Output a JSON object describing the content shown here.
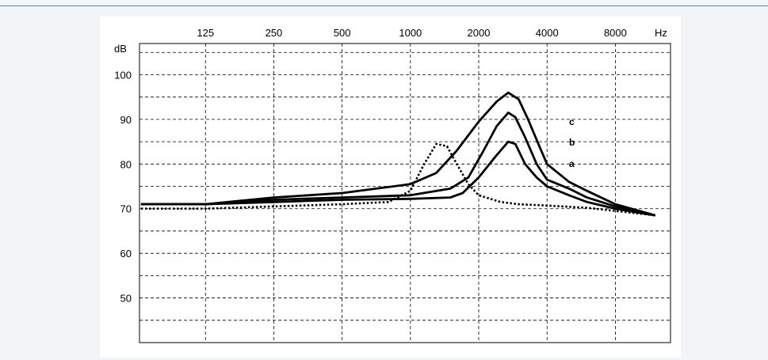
{
  "chart_data": {
    "type": "line",
    "x_unit_label": "Hz",
    "y_unit_label": "dB",
    "x_scale": "log",
    "x_ticks": [
      125,
      250,
      500,
      1000,
      2000,
      4000,
      8000
    ],
    "x_tick_labels": [
      "125",
      "250",
      "500",
      "1000",
      "2000",
      "4000",
      "8000"
    ],
    "xlim": [
      64,
      14000
    ],
    "y_ticks": [
      50,
      60,
      70,
      80,
      90,
      100
    ],
    "y_tick_labels": [
      "50",
      "60",
      "70",
      "80",
      "90",
      "100"
    ],
    "ylim": [
      40,
      107
    ],
    "grid": true,
    "grid_style": "dashed",
    "series": [
      {
        "name": "",
        "style": "dotted",
        "color": "#000000",
        "x": [
          65,
          125,
          250,
          500,
          800,
          1000,
          1150,
          1300,
          1450,
          1600,
          1800,
          2000,
          2500,
          3000,
          4000,
          6000,
          8000,
          12000
        ],
        "y": [
          70,
          70,
          70.5,
          71,
          71.5,
          74,
          80,
          84.5,
          84,
          80,
          75.5,
          73,
          71.5,
          71,
          70.7,
          70.2,
          69.5,
          68.5
        ]
      },
      {
        "name": "a",
        "style": "solid",
        "color": "#000000",
        "x": [
          65,
          125,
          250,
          500,
          1000,
          1500,
          1700,
          2000,
          2400,
          2700,
          2900,
          3200,
          3600,
          4000,
          5000,
          6000,
          8000,
          12000
        ],
        "y": [
          71,
          71,
          71.5,
          72,
          72.2,
          72.5,
          73.5,
          77,
          82,
          85,
          84.5,
          80,
          77,
          75,
          73,
          71.5,
          70,
          68.5
        ]
      },
      {
        "name": "b",
        "style": "solid",
        "color": "#000000",
        "x": [
          65,
          125,
          250,
          500,
          1000,
          1500,
          1800,
          2100,
          2400,
          2700,
          2900,
          3200,
          3600,
          4000,
          5000,
          6000,
          8000,
          12000
        ],
        "y": [
          71,
          71,
          72,
          72.5,
          73,
          74.5,
          77,
          83,
          88.5,
          91.5,
          90.5,
          86,
          80,
          76.5,
          74.5,
          72.5,
          70.5,
          68.5
        ]
      },
      {
        "name": "c",
        "style": "solid",
        "color": "#000000",
        "x": [
          65,
          125,
          250,
          500,
          1000,
          1300,
          1600,
          2000,
          2400,
          2700,
          3000,
          3300,
          3700,
          4000,
          5000,
          6000,
          8000,
          12000
        ],
        "y": [
          71,
          71,
          72.5,
          73.5,
          75.5,
          78,
          83,
          89.5,
          94,
          96,
          94.5,
          90,
          84,
          80,
          76,
          74,
          71,
          68.5
        ]
      }
    ],
    "curve_labels": [
      "c",
      "b",
      "a"
    ]
  }
}
